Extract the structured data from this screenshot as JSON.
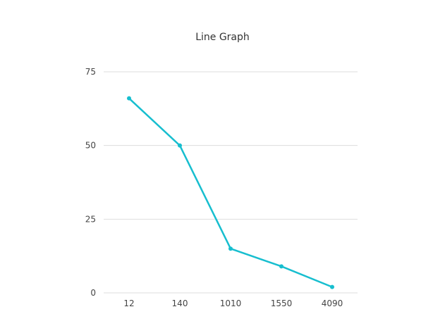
{
  "chart_data": {
    "type": "line",
    "title": "Line Graph",
    "xlabel": "",
    "ylabel": "",
    "categories": [
      "12",
      "140",
      "1010",
      "1550",
      "4090"
    ],
    "series": [
      {
        "values": [
          66,
          50,
          15,
          9,
          2
        ],
        "color": "#17becf"
      }
    ],
    "ylim": [
      0,
      75
    ],
    "yticks": [
      0,
      25,
      50,
      75
    ],
    "grid": true,
    "legend": "none"
  }
}
